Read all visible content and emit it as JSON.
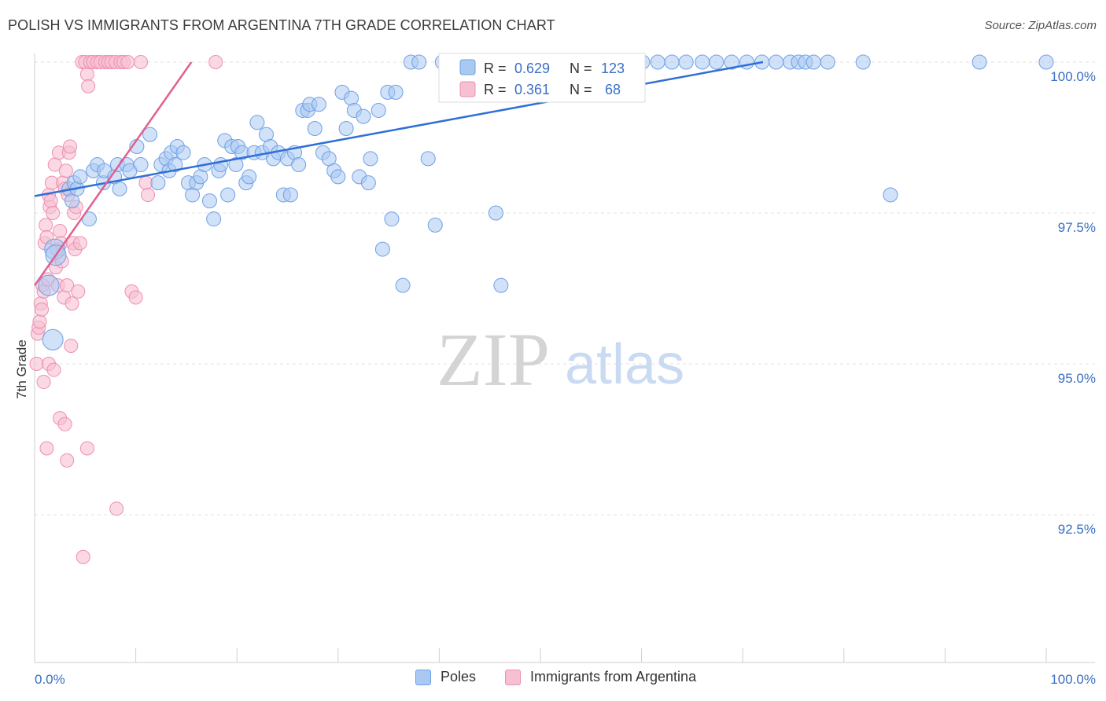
{
  "title": "POLISH VS IMMIGRANTS FROM ARGENTINA 7TH GRADE CORRELATION CHART",
  "source": "Source: ZipAtlas.com",
  "watermark": {
    "zip": "ZIP",
    "atlas": "atlas"
  },
  "colors": {
    "blue": "#6fa0e6",
    "blue_fill": "#a9c8f2",
    "blue_line": "#2f6fd6",
    "pink": "#ee8fb0",
    "pink_fill": "#f6c0d2",
    "pink_line": "#e2608e",
    "axis_text": "#3a6fc4",
    "grid": "#e6e6e6"
  },
  "legend_box": {
    "rows": [
      {
        "r_label": "R = ",
        "r_value": "0.629",
        "n_label": "N = ",
        "n_value": "123"
      },
      {
        "r_label": "R = ",
        "r_value": "0.361",
        "n_label": "N = ",
        "n_value": " 68"
      }
    ]
  },
  "bottom_legend": [
    {
      "label": "Poles"
    },
    {
      "label": "Immigrants from Argentina"
    }
  ],
  "chart_data": {
    "type": "scatter",
    "title": "POLISH VS IMMIGRANTS FROM ARGENTINA 7TH GRADE CORRELATION CHART",
    "xlabel": "",
    "ylabel": "7th Grade",
    "xlim": [
      0,
      100
    ],
    "ylim": [
      90.5,
      100.2
    ],
    "x_tick_labels": [
      "0.0%",
      "100.0%"
    ],
    "y_ticks": [
      {
        "value": 100.0,
        "label": "100.0%"
      },
      {
        "value": 97.5,
        "label": "97.5%"
      },
      {
        "value": 95.0,
        "label": "95.0%"
      },
      {
        "value": 92.5,
        "label": "92.5%"
      }
    ],
    "grid": true,
    "legend_position": "top-center",
    "series": [
      {
        "name": "Poles",
        "r": 0.629,
        "n": 123,
        "trend": {
          "x": [
            0,
            72
          ],
          "y": [
            97.78,
            100.0
          ]
        },
        "points": [
          [
            1.4,
            96.3
          ],
          [
            1.8,
            95.4
          ],
          [
            2.0,
            96.9
          ],
          [
            2.1,
            96.8
          ],
          [
            3.4,
            97.9
          ],
          [
            3.7,
            97.7
          ],
          [
            3.9,
            98.0
          ],
          [
            4.2,
            97.9
          ],
          [
            4.5,
            98.1
          ],
          [
            5.4,
            97.4
          ],
          [
            5.8,
            98.2
          ],
          [
            6.2,
            98.3
          ],
          [
            6.8,
            98.0
          ],
          [
            6.9,
            98.2
          ],
          [
            7.9,
            98.1
          ],
          [
            8.2,
            98.3
          ],
          [
            8.4,
            97.9
          ],
          [
            9.1,
            98.3
          ],
          [
            9.4,
            98.2
          ],
          [
            10.1,
            98.6
          ],
          [
            10.5,
            98.3
          ],
          [
            11.4,
            98.8
          ],
          [
            12.2,
            98.0
          ],
          [
            12.5,
            98.3
          ],
          [
            13.0,
            98.4
          ],
          [
            13.3,
            98.2
          ],
          [
            13.5,
            98.5
          ],
          [
            13.9,
            98.3
          ],
          [
            14.1,
            98.6
          ],
          [
            14.7,
            98.5
          ],
          [
            15.2,
            98.0
          ],
          [
            15.6,
            97.8
          ],
          [
            16.0,
            98.0
          ],
          [
            16.4,
            98.1
          ],
          [
            16.8,
            98.3
          ],
          [
            17.3,
            97.7
          ],
          [
            17.7,
            97.4
          ],
          [
            18.2,
            98.2
          ],
          [
            18.4,
            98.3
          ],
          [
            18.8,
            98.7
          ],
          [
            19.1,
            97.8
          ],
          [
            19.5,
            98.6
          ],
          [
            19.9,
            98.3
          ],
          [
            20.1,
            98.6
          ],
          [
            20.5,
            98.5
          ],
          [
            20.9,
            98.0
          ],
          [
            21.2,
            98.1
          ],
          [
            21.7,
            98.5
          ],
          [
            22.0,
            99.0
          ],
          [
            22.5,
            98.5
          ],
          [
            22.9,
            98.8
          ],
          [
            23.3,
            98.6
          ],
          [
            23.6,
            98.4
          ],
          [
            24.1,
            98.5
          ],
          [
            24.6,
            97.8
          ],
          [
            25.0,
            98.4
          ],
          [
            25.3,
            97.8
          ],
          [
            25.7,
            98.5
          ],
          [
            26.1,
            98.3
          ],
          [
            26.5,
            99.2
          ],
          [
            27.0,
            99.2
          ],
          [
            27.2,
            99.3
          ],
          [
            27.7,
            98.9
          ],
          [
            28.1,
            99.3
          ],
          [
            28.5,
            98.5
          ],
          [
            29.1,
            98.4
          ],
          [
            29.6,
            98.2
          ],
          [
            30.0,
            98.1
          ],
          [
            30.4,
            99.5
          ],
          [
            30.8,
            98.9
          ],
          [
            31.3,
            99.4
          ],
          [
            31.6,
            99.2
          ],
          [
            32.1,
            98.1
          ],
          [
            32.5,
            99.1
          ],
          [
            33.0,
            98.0
          ],
          [
            33.2,
            98.4
          ],
          [
            34.0,
            99.2
          ],
          [
            34.4,
            96.9
          ],
          [
            34.9,
            99.5
          ],
          [
            35.3,
            97.4
          ],
          [
            35.7,
            99.5
          ],
          [
            36.4,
            96.3
          ],
          [
            37.2,
            100.0
          ],
          [
            38.0,
            100.0
          ],
          [
            38.9,
            98.4
          ],
          [
            39.6,
            97.3
          ],
          [
            40.3,
            100.0
          ],
          [
            41.8,
            100.0
          ],
          [
            43.0,
            100.0
          ],
          [
            44.4,
            99.6
          ],
          [
            45.6,
            97.5
          ],
          [
            46.1,
            96.3
          ],
          [
            47.0,
            100.0
          ],
          [
            48.2,
            100.0
          ],
          [
            49.5,
            100.0
          ],
          [
            51.0,
            100.0
          ],
          [
            52.4,
            100.0
          ],
          [
            54.0,
            100.0
          ],
          [
            55.5,
            100.0
          ],
          [
            57.1,
            100.0
          ],
          [
            58.7,
            100.0
          ],
          [
            60.1,
            100.0
          ],
          [
            61.6,
            100.0
          ],
          [
            63.0,
            100.0
          ],
          [
            64.4,
            100.0
          ],
          [
            66.0,
            100.0
          ],
          [
            67.4,
            100.0
          ],
          [
            68.9,
            100.0
          ],
          [
            70.4,
            100.0
          ],
          [
            71.9,
            100.0
          ],
          [
            73.3,
            100.0
          ],
          [
            74.7,
            100.0
          ],
          [
            75.5,
            100.0
          ],
          [
            76.2,
            100.0
          ],
          [
            77.0,
            100.0
          ],
          [
            78.4,
            100.0
          ],
          [
            81.9,
            100.0
          ],
          [
            84.6,
            97.8
          ],
          [
            93.4,
            100.0
          ],
          [
            100.0,
            100.0
          ],
          [
            54.2,
            100.0
          ],
          [
            50.3,
            100.0
          ],
          [
            44.8,
            100.0
          ]
        ]
      },
      {
        "name": "Immigrants from Argentina",
        "r": 0.361,
        "n": 68,
        "trend": {
          "x": [
            0,
            15.5
          ],
          "y": [
            96.3,
            100.0
          ]
        },
        "points": [
          [
            0.2,
            95.0
          ],
          [
            0.3,
            95.5
          ],
          [
            0.4,
            95.6
          ],
          [
            0.5,
            95.7
          ],
          [
            0.6,
            96.0
          ],
          [
            0.7,
            95.9
          ],
          [
            0.8,
            96.3
          ],
          [
            0.9,
            96.2
          ],
          [
            1.0,
            97.0
          ],
          [
            1.1,
            97.3
          ],
          [
            1.2,
            97.1
          ],
          [
            1.3,
            96.4
          ],
          [
            1.4,
            97.8
          ],
          [
            1.5,
            97.6
          ],
          [
            1.6,
            97.7
          ],
          [
            1.7,
            98.0
          ],
          [
            1.8,
            97.5
          ],
          [
            2.0,
            98.3
          ],
          [
            2.1,
            96.6
          ],
          [
            2.2,
            96.9
          ],
          [
            2.3,
            96.3
          ],
          [
            2.4,
            98.5
          ],
          [
            2.5,
            97.2
          ],
          [
            2.6,
            97.0
          ],
          [
            2.7,
            96.7
          ],
          [
            2.8,
            98.0
          ],
          [
            2.9,
            96.1
          ],
          [
            3.0,
            97.9
          ],
          [
            3.1,
            98.2
          ],
          [
            3.2,
            96.3
          ],
          [
            3.3,
            97.8
          ],
          [
            3.4,
            98.5
          ],
          [
            3.5,
            98.6
          ],
          [
            3.6,
            95.3
          ],
          [
            3.7,
            96.0
          ],
          [
            3.8,
            97.0
          ],
          [
            3.9,
            97.5
          ],
          [
            4.0,
            96.9
          ],
          [
            4.1,
            97.6
          ],
          [
            4.3,
            96.2
          ],
          [
            4.5,
            97.0
          ],
          [
            4.7,
            100.0
          ],
          [
            5.0,
            100.0
          ],
          [
            5.2,
            99.8
          ],
          [
            5.3,
            99.6
          ],
          [
            5.5,
            100.0
          ],
          [
            5.8,
            100.0
          ],
          [
            6.2,
            100.0
          ],
          [
            6.5,
            100.0
          ],
          [
            7.0,
            100.0
          ],
          [
            7.3,
            100.0
          ],
          [
            7.6,
            100.0
          ],
          [
            8.0,
            100.0
          ],
          [
            8.5,
            100.0
          ],
          [
            8.8,
            100.0
          ],
          [
            9.2,
            100.0
          ],
          [
            9.6,
            96.2
          ],
          [
            10.0,
            96.1
          ],
          [
            10.5,
            100.0
          ],
          [
            11.0,
            98.0
          ],
          [
            11.2,
            97.8
          ],
          [
            17.9,
            100.0
          ],
          [
            0.9,
            94.7
          ],
          [
            1.4,
            95.0
          ],
          [
            1.9,
            94.9
          ],
          [
            2.5,
            94.1
          ],
          [
            3.0,
            94.0
          ],
          [
            3.2,
            93.4
          ]
        ]
      }
    ],
    "extra_pink_low": [
      [
        1.2,
        93.6
      ],
      [
        5.2,
        93.6
      ],
      [
        8.1,
        92.6
      ],
      [
        4.8,
        91.8
      ]
    ]
  }
}
